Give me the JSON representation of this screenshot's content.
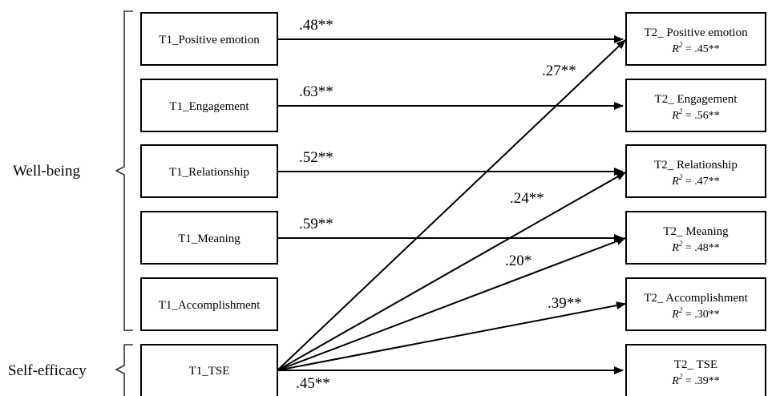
{
  "groups": {
    "wellbeing": "Well-being",
    "selfefficacy": "Self-efficacy"
  },
  "left_nodes": [
    {
      "label": "T1_Positive emotion"
    },
    {
      "label": "T1_Engagement"
    },
    {
      "label": "T1_Relationship"
    },
    {
      "label": "T1_Meaning"
    },
    {
      "label": "T1_Accomplishment"
    },
    {
      "label": "T1_TSE"
    }
  ],
  "right_nodes": [
    {
      "label": "T2_ Positive emotion",
      "r2_prefix": "R",
      "r2_sup": "2",
      "r2_value": " = .45**"
    },
    {
      "label": "T2_ Engagement",
      "r2_prefix": "R",
      "r2_sup": "2",
      "r2_value": " = .56**"
    },
    {
      "label": "T2_ Relationship",
      "r2_prefix": "R",
      "r2_sup": "2",
      "r2_value": " = .47**"
    },
    {
      "label": "T2_ Meaning",
      "r2_prefix": "R",
      "r2_sup": "2",
      "r2_value": " = .48**"
    },
    {
      "label": "T2_ Accomplishment",
      "r2_prefix": "R",
      "r2_sup": "2",
      "r2_value": " = .30**"
    },
    {
      "label": "T2_ TSE",
      "r2_prefix": "R",
      "r2_sup": "2",
      "r2_value": " = .39**"
    }
  ],
  "paths": {
    "pe_pe": ".48**",
    "en_en": ".63**",
    "re_re": ".52**",
    "me_me": ".59**",
    "tse_tse": ".45**",
    "tse_pe": ".27**",
    "tse_re": ".24**",
    "tse_me": ".20*",
    "tse_ac": ".39**"
  }
}
